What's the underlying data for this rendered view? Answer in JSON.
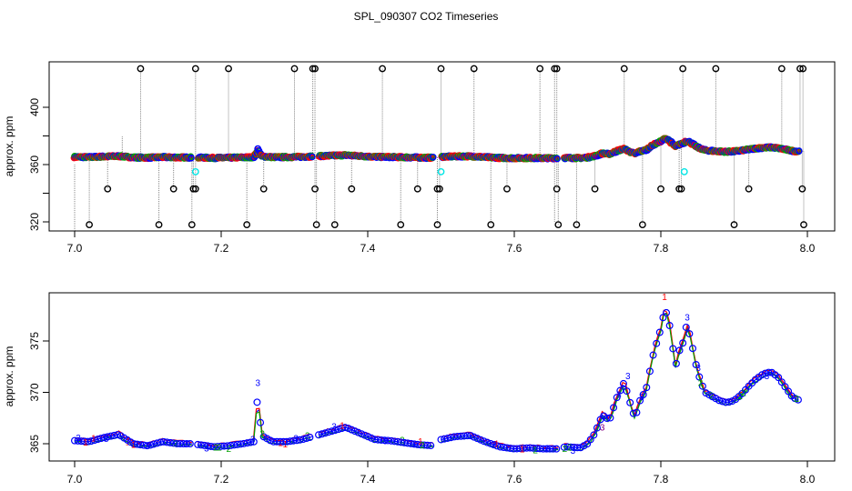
{
  "figure": {
    "title": "SPL_090307  CO2 Timeseries"
  },
  "chart_data": [
    {
      "type": "scatter",
      "title": "SPL_090307  CO2 Timeseries",
      "xlabel": "",
      "ylabel": "approx. ppm",
      "xlim": [
        7.0,
        8.0
      ],
      "ylim": [
        312,
        430
      ],
      "xticks": [
        "7.0",
        "7.2",
        "7.4",
        "7.6",
        "7.8",
        "8.0"
      ],
      "yticks": [
        "320",
        "360",
        "400"
      ],
      "grid": false,
      "colors": {
        "main": "#0000ff",
        "alt1": "#ff0000",
        "alt2": "#00a000",
        "outlier": "#000000",
        "cyan": "#00e5e5",
        "dropline": "#888888"
      },
      "segments": [
        [
          7.0,
          7.16
        ],
        [
          7.168,
          7.325
        ],
        [
          7.333,
          7.49
        ],
        [
          7.5,
          7.66
        ],
        [
          7.668,
          7.99
        ]
      ],
      "main_curve": {
        "x": [
          7.0,
          7.02,
          7.04,
          7.06,
          7.08,
          7.1,
          7.12,
          7.14,
          7.16,
          7.17,
          7.19,
          7.21,
          7.23,
          7.245,
          7.25,
          7.255,
          7.27,
          7.29,
          7.31,
          7.33,
          7.35,
          7.37,
          7.39,
          7.41,
          7.43,
          7.45,
          7.47,
          7.49,
          7.5,
          7.52,
          7.54,
          7.56,
          7.58,
          7.6,
          7.62,
          7.64,
          7.66,
          7.67,
          7.69,
          7.7,
          7.71,
          7.72,
          7.73,
          7.74,
          7.75,
          7.76,
          7.765,
          7.77,
          7.78,
          7.79,
          7.8,
          7.805,
          7.81,
          7.815,
          7.82,
          7.825,
          7.83,
          7.835,
          7.84,
          7.85,
          7.86,
          7.87,
          7.88,
          7.89,
          7.9,
          7.91,
          7.92,
          7.93,
          7.94,
          7.95,
          7.96,
          7.97,
          7.98,
          7.99
        ],
        "y": [
          365.3,
          365.2,
          365.6,
          365.9,
          365.0,
          364.8,
          365.2,
          365.0,
          365.0,
          364.9,
          364.7,
          364.8,
          365.0,
          365.2,
          370.0,
          365.8,
          365.2,
          365.2,
          365.4,
          365.8,
          366.2,
          366.6,
          366.0,
          365.4,
          365.3,
          365.1,
          364.9,
          364.8,
          365.4,
          365.7,
          365.8,
          365.2,
          364.7,
          364.5,
          364.6,
          364.5,
          364.5,
          364.7,
          364.6,
          365.0,
          366.0,
          367.8,
          367.3,
          369.5,
          371.0,
          368.5,
          367.4,
          369.0,
          370.3,
          373.8,
          376.2,
          378.0,
          377.5,
          375.0,
          372.5,
          374.0,
          374.8,
          376.5,
          375.5,
          372.0,
          370.0,
          369.6,
          369.2,
          369.0,
          369.2,
          369.8,
          370.6,
          371.3,
          371.8,
          372.0,
          371.5,
          370.5,
          369.5,
          369.2
        ]
      },
      "outliers_high": [
        7.09,
        7.165,
        7.21,
        7.3,
        7.325,
        7.328,
        7.42,
        7.5,
        7.545,
        7.635,
        7.655,
        7.658,
        7.75,
        7.83,
        7.875,
        7.965,
        7.99,
        7.994
      ],
      "outliers_low": [
        7.02,
        7.115,
        7.16,
        7.235,
        7.33,
        7.355,
        7.445,
        7.495,
        7.568,
        7.66,
        7.685,
        7.775,
        7.9,
        7.995
      ],
      "outliers_mid": [
        7.045,
        7.135,
        7.162,
        7.165,
        7.258,
        7.328,
        7.378,
        7.468,
        7.495,
        7.498,
        7.59,
        7.658,
        7.71,
        7.8,
        7.825,
        7.828,
        7.92,
        7.993
      ],
      "outlier_values": {
        "high": 427,
        "mid": 343,
        "low": 318
      },
      "cyan_points": [
        [
          7.165,
          355
        ],
        [
          7.5,
          355
        ],
        [
          7.832,
          355
        ]
      ],
      "blue_spike_point": [
        7.25,
        371
      ]
    },
    {
      "type": "line",
      "title": "",
      "xlabel": "",
      "ylabel": "approx. ppm",
      "xlim": [
        7.0,
        8.0
      ],
      "ylim": [
        363.7,
        379.2
      ],
      "xticks": [
        "7.0",
        "7.2",
        "7.4",
        "7.6",
        "7.8",
        "8.0"
      ],
      "yticks": [
        "365",
        "370",
        "375"
      ],
      "grid": false,
      "point_labels": [
        "1",
        "2",
        "3"
      ],
      "series": [
        {
          "color": "#0000ff",
          "role": "main"
        },
        {
          "color": "#ff0000",
          "role": "sensor-1"
        },
        {
          "color": "#00a000",
          "role": "sensor-2"
        },
        {
          "color": "#800080",
          "role": "label-3"
        }
      ]
    }
  ]
}
